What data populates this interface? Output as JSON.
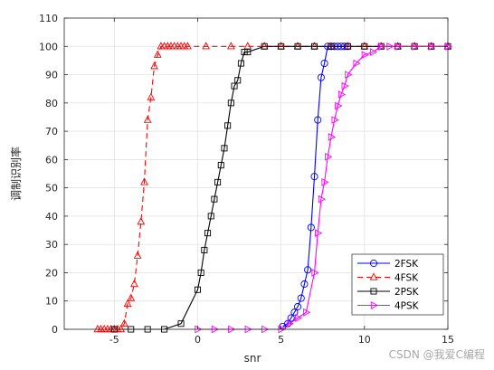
{
  "chart_data": {
    "type": "line",
    "xlabel": "snr",
    "ylabel": "调制识别率",
    "xlim": [
      -8,
      15
    ],
    "ylim": [
      0,
      110
    ],
    "xticks": [
      -5,
      0,
      5,
      10,
      15
    ],
    "yticks": [
      0,
      10,
      20,
      30,
      40,
      50,
      60,
      70,
      80,
      90,
      100,
      110
    ],
    "grid": true,
    "legend_position": "bottom-right",
    "series": [
      {
        "name": "2FSK",
        "color": "#0000ff",
        "marker": "circle",
        "dash": "solid",
        "x": [
          5.1,
          5.4,
          5.6,
          5.8,
          6.0,
          6.2,
          6.4,
          6.6,
          6.8,
          7.0,
          7.2,
          7.4,
          7.6,
          7.8,
          8.0,
          8.2,
          8.4,
          8.6,
          8.8,
          9.0
        ],
        "y": [
          1,
          2,
          4,
          6,
          8,
          11,
          16,
          21,
          36,
          54,
          74,
          89,
          94,
          100,
          100,
          100,
          100,
          100,
          100,
          100
        ]
      },
      {
        "name": "4FSK",
        "color": "#ff0000",
        "marker": "triangle",
        "dash": "dashed",
        "x": [
          -6.0,
          -5.8,
          -5.6,
          -5.4,
          -5.2,
          -5.0,
          -4.8,
          -4.6,
          -4.4,
          -4.2,
          -4.0,
          -3.8,
          -3.6,
          -3.4,
          -3.2,
          -3.0,
          -2.8,
          -2.6,
          -2.4,
          -2.2,
          -2.0,
          -1.8,
          -1.6,
          -1.4,
          -1.2,
          -1.0,
          -0.8,
          -0.6,
          0.5,
          2.0,
          3.0,
          4.0,
          5.0,
          6.0,
          7.0,
          8.0,
          9.0,
          10.0,
          11.0,
          12.0,
          13.0,
          14.0,
          15.0
        ],
        "y": [
          0,
          0,
          0,
          0,
          0,
          0,
          0,
          0,
          2,
          9,
          11,
          16,
          26,
          38,
          52,
          74,
          82,
          93,
          97,
          100,
          100,
          100,
          100,
          100,
          100,
          100,
          100,
          100,
          100,
          100,
          100,
          100,
          100,
          100,
          100,
          100,
          100,
          100,
          100,
          100,
          100,
          100,
          100
        ]
      },
      {
        "name": "2PSK",
        "color": "#000000",
        "marker": "square",
        "dash": "solid",
        "x": [
          -5.0,
          -4.0,
          -3.0,
          -2.0,
          -1.0,
          0.0,
          0.2,
          0.4,
          0.6,
          0.8,
          1.0,
          1.2,
          1.4,
          1.6,
          1.8,
          2.0,
          2.2,
          2.4,
          2.6,
          2.8,
          3.0,
          4.0,
          5.0,
          6.0,
          7.0,
          8.0,
          9.0,
          10.0,
          11.0,
          12.0,
          13.0,
          14.0,
          15.0
        ],
        "y": [
          0,
          0,
          0,
          0,
          2,
          14,
          20,
          28,
          34,
          40,
          46,
          52,
          58,
          64,
          72,
          80,
          86,
          88,
          94,
          98,
          98,
          100,
          100,
          100,
          100,
          100,
          100,
          100,
          100,
          100,
          100,
          100,
          100
        ]
      },
      {
        "name": "4PSK",
        "color": "#ff00ff",
        "marker": "triangle-right",
        "dash": "solid",
        "x": [
          0.0,
          1.0,
          2.0,
          3.0,
          4.0,
          5.0,
          5.5,
          6.0,
          6.5,
          7.0,
          7.2,
          7.4,
          7.6,
          7.8,
          8.0,
          8.2,
          8.4,
          8.6,
          8.8,
          9.0,
          9.5,
          10.0,
          10.5,
          11.0,
          11.5,
          12.0,
          13.0,
          14.0,
          15.0
        ],
        "y": [
          0,
          0,
          0,
          0,
          0,
          0,
          2,
          4,
          6,
          20,
          34,
          46,
          52,
          61,
          68,
          74,
          79,
          83,
          86,
          90,
          94,
          97,
          98,
          100,
          100,
          100,
          100,
          100,
          100
        ]
      }
    ]
  },
  "watermark": "CSDN @我爱C编程"
}
